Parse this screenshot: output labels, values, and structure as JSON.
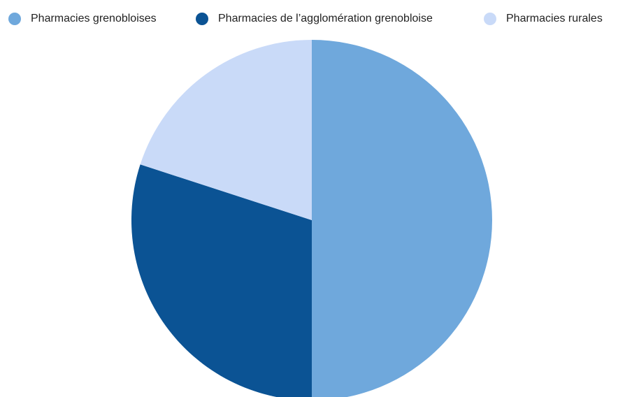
{
  "chart_data": {
    "type": "pie",
    "categories": [
      "Pharmacies grenobloises",
      "Pharmacies de l’agglomération grenobloise",
      "Pharmacies rurales"
    ],
    "values": [
      50,
      30,
      20
    ],
    "colors": [
      "#6fa8dc",
      "#0b5394",
      "#c9daf8"
    ],
    "legend": "top"
  }
}
